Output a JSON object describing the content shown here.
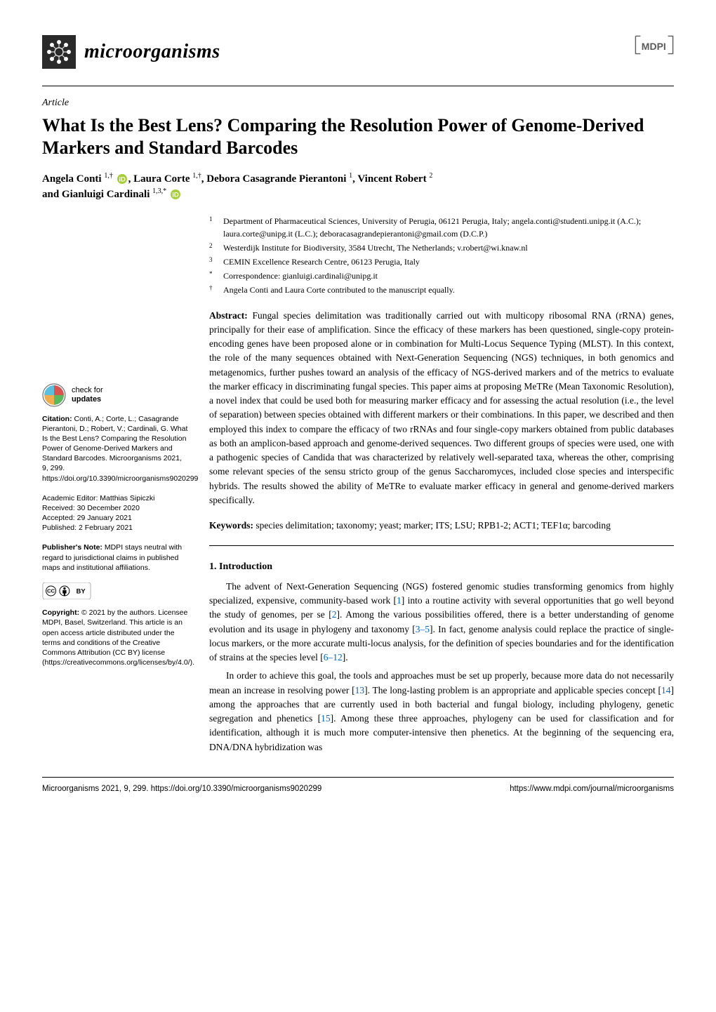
{
  "header": {
    "journal_name": "microorganisms",
    "logo_colors": {
      "bg": "#2a2a2a",
      "fg": "#ffffff"
    },
    "publisher": "MDPI",
    "publisher_colors": {
      "text": "#5a5a5a",
      "frame": "#5a5a5a"
    }
  },
  "article_type": "Article",
  "title": "What Is the Best Lens? Comparing the Resolution Power of Genome-Derived Markers and Standard Barcodes",
  "authors_line_1": "Angela Conti ",
  "authors_sup_1": "1,†",
  "authors_line_2": ", Laura Corte ",
  "authors_sup_2": "1,†",
  "authors_line_3": ", Debora Casagrande Pierantoni ",
  "authors_sup_3": "1",
  "authors_line_4": ", Vincent Robert ",
  "authors_sup_4": "2",
  "authors_line_5": "and Gianluigi Cardinali ",
  "authors_sup_5": "1,3,",
  "authors_sup_5b": "*",
  "orcid_color": "#a6ce39",
  "affiliations": [
    {
      "num": "1",
      "text": "Department of Pharmaceutical Sciences, University of Perugia, 06121 Perugia, Italy; angela.conti@studenti.unipg.it (A.C.); laura.corte@unipg.it (L.C.); deboracasagrandepierantoni@gmail.com (D.C.P.)"
    },
    {
      "num": "2",
      "text": "Westerdijk Institute for Biodiversity, 3584 Utrecht, The Netherlands; v.robert@wi.knaw.nl"
    },
    {
      "num": "3",
      "text": "CEMIN Excellence Research Centre, 06123 Perugia, Italy"
    },
    {
      "num": "*",
      "text": "Correspondence: gianluigi.cardinali@unipg.it"
    },
    {
      "num": "†",
      "text": "Angela Conti and Laura Corte contributed to the manuscript equally."
    }
  ],
  "abstract_label": "Abstract:",
  "abstract_text": " Fungal species delimitation was traditionally carried out with multicopy ribosomal RNA (rRNA) genes, principally for their ease of amplification. Since the efficacy of these markers has been questioned, single-copy protein-encoding genes have been proposed alone or in combination for Multi-Locus Sequence Typing (MLST). In this context, the role of the many sequences obtained with Next-Generation Sequencing (NGS) techniques, in both genomics and metagenomics, further pushes toward an analysis of the efficacy of NGS-derived markers and of the metrics to evaluate the marker efficacy in discriminating fungal species. This paper aims at proposing MeTRe (Mean Taxonomic Resolution), a novel index that could be used both for measuring marker efficacy and for assessing the actual resolution (i.e., the level of separation) between species obtained with different markers or their combinations. In this paper, we described and then employed this index to compare the efficacy of two rRNAs and four single-copy markers obtained from public databases as both an amplicon-based approach and genome-derived sequences. Two different groups of species were used, one with a pathogenic species of Candida that was characterized by relatively well-separated taxa, whereas the other, comprising some relevant species of the sensu stricto group of the genus Saccharomyces, included close species and interspecific hybrids. The results showed the ability of MeTRe to evaluate marker efficacy in general and genome-derived markers specifically.",
  "keywords_label": "Keywords:",
  "keywords_text": " species delimitation; taxonomy; yeast; marker; ITS; LSU; RPB1-2; ACT1; TEF1α; barcoding",
  "section_1_heading": "1. Introduction",
  "intro_p1": "The advent of Next-Generation Sequencing (NGS) fostered genomic studies transforming genomics from highly specialized, expensive, community-based work [1] into a routine activity with several opportunities that go well beyond the study of genomes, per se [2]. Among the various possibilities offered, there is a better understanding of genome evolution and its usage in phylogeny and taxonomy [3–5]. In fact, genome analysis could replace the practice of single-locus markers, or the more accurate multi-locus analysis, for the definition of species boundaries and for the identification of strains at the species level [6–12].",
  "intro_p2": "In order to achieve this goal, the tools and approaches must be set up properly, because more data do not necessarily mean an increase in resolving power [13]. The long-lasting problem is an appropriate and applicable species concept [14] among the approaches that are currently used in both bacterial and fungal biology, including phylogeny, genetic segregation and phenetics [15]. Among these three approaches, phylogeny can be used for classification and for identification, although it is much more computer-intensive then phenetics. At the beginning of the sequencing era, DNA/DNA hybridization was",
  "sidebar": {
    "updates_line1": "check for",
    "updates_line2": "updates",
    "citation_label": "Citation:",
    "citation_text": " Conti, A.; Corte, L.; Casagrande Pierantoni, D.; Robert, V.; Cardinali, G. What Is the Best Lens? Comparing the Resolution Power of Genome-Derived Markers and Standard Barcodes. Microorganisms 2021, 9, 299. https://doi.org/10.3390/microorganisms9020299",
    "editor_label": "Academic Editor: ",
    "editor_text": "Matthias Sipiczki",
    "received_label": "Received: ",
    "received_text": "30 December 2020",
    "accepted_label": "Accepted: ",
    "accepted_text": "29 January 2021",
    "published_label": "Published: ",
    "published_text": "2 February 2021",
    "pubnote_label": "Publisher's Note:",
    "pubnote_text": " MDPI stays neutral with regard to jurisdictional claims in published maps and institutional affiliations.",
    "copyright_label": "Copyright:",
    "copyright_text": " © 2021 by the authors. Licensee MDPI, Basel, Switzerland. This article is an open access article distributed under the terms and conditions of the Creative Commons Attribution (CC BY) license (https://creativecommons.org/licenses/by/4.0/)."
  },
  "footer": {
    "left": "Microorganisms 2021, 9, 299. https://doi.org/10.3390/microorganisms9020299",
    "right": "https://www.mdpi.com/journal/microorganisms"
  },
  "colors": {
    "link": "#0066cc",
    "text": "#000000",
    "sidebar_text": "#000000"
  }
}
